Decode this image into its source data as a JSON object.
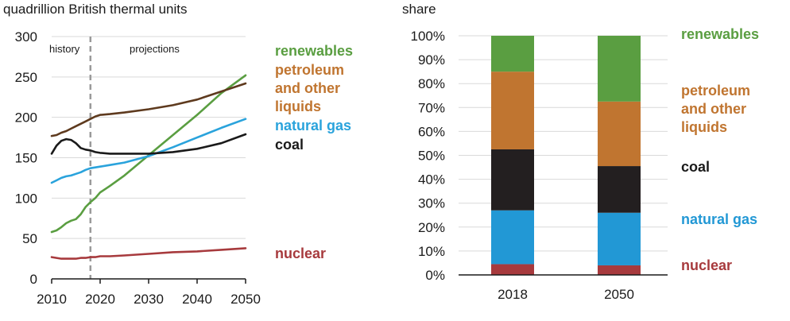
{
  "chart_data": [
    {
      "type": "line",
      "title": "",
      "ylabel": "quadrillion British thermal units",
      "xlabel": "",
      "xlim": [
        2010,
        2050
      ],
      "ylim": [
        0,
        300
      ],
      "xticks": [
        2010,
        2020,
        2030,
        2040,
        2050
      ],
      "yticks": [
        0,
        50,
        100,
        150,
        200,
        250,
        300
      ],
      "annotations": {
        "history": "history",
        "projections": "projections",
        "divider_year": 2018
      },
      "series": [
        {
          "name": "renewables",
          "color": "#5a9e41",
          "x": [
            2010,
            2011,
            2012,
            2013,
            2014,
            2015,
            2016,
            2017,
            2018,
            2019,
            2020,
            2022,
            2025,
            2030,
            2035,
            2040,
            2045,
            2050
          ],
          "y": [
            58,
            60,
            64,
            69,
            72,
            74,
            80,
            89,
            95,
            100,
            107,
            115,
            128,
            153,
            178,
            203,
            230,
            252
          ]
        },
        {
          "name": "petroleum and other liquids",
          "color": "#5e3a1e",
          "x": [
            2010,
            2011,
            2012,
            2013,
            2014,
            2015,
            2016,
            2017,
            2018,
            2019,
            2020,
            2022,
            2025,
            2030,
            2035,
            2040,
            2045,
            2050
          ],
          "y": [
            177,
            178,
            181,
            183,
            186,
            189,
            192,
            195,
            198,
            201,
            203,
            204,
            206,
            210,
            215,
            222,
            232,
            242
          ]
        },
        {
          "name": "natural gas",
          "color": "#2aa3dc",
          "x": [
            2010,
            2011,
            2012,
            2013,
            2014,
            2015,
            2016,
            2017,
            2018,
            2019,
            2020,
            2022,
            2025,
            2030,
            2035,
            2040,
            2045,
            2050
          ],
          "y": [
            119,
            122,
            125,
            127,
            128,
            130,
            132,
            135,
            137,
            138,
            139,
            141,
            144,
            152,
            163,
            175,
            187,
            198
          ]
        },
        {
          "name": "coal",
          "color": "#1a1a1a",
          "x": [
            2010,
            2011,
            2012,
            2013,
            2014,
            2015,
            2016,
            2017,
            2018,
            2019,
            2020,
            2022,
            2025,
            2030,
            2035,
            2040,
            2045,
            2050
          ],
          "y": [
            155,
            165,
            171,
            173,
            172,
            168,
            162,
            160,
            159,
            157,
            156,
            155,
            155,
            155,
            157,
            161,
            168,
            179
          ]
        },
        {
          "name": "nuclear",
          "color": "#a73a3d",
          "x": [
            2010,
            2011,
            2012,
            2013,
            2014,
            2015,
            2016,
            2017,
            2018,
            2019,
            2020,
            2022,
            2025,
            2030,
            2035,
            2040,
            2045,
            2050
          ],
          "y": [
            27,
            26,
            25,
            25,
            25,
            25,
            26,
            26,
            27,
            27,
            28,
            28,
            29,
            31,
            33,
            34,
            36,
            38
          ]
        }
      ],
      "legend": [
        {
          "text": "renewables",
          "color": "#5a9e41"
        },
        {
          "text": "petroleum",
          "color": "#c07530"
        },
        {
          "text": "and other",
          "color": "#c07530"
        },
        {
          "text": "liquids",
          "color": "#c07530"
        },
        {
          "text": "natural gas",
          "color": "#2aa3dc"
        },
        {
          "text": "coal",
          "color": "#1a1a1a"
        },
        {
          "text": "nuclear",
          "color": "#a73a3d"
        }
      ]
    },
    {
      "type": "bar",
      "stacked": true,
      "title": "",
      "ylabel": "share",
      "xlabel": "",
      "categories": [
        "2018",
        "2050"
      ],
      "ylim": [
        0,
        100
      ],
      "yticks": [
        "0%",
        "10%",
        "20%",
        "30%",
        "40%",
        "50%",
        "60%",
        "70%",
        "80%",
        "90%",
        "100%"
      ],
      "series": [
        {
          "name": "nuclear",
          "color": "#a73a3d",
          "values": [
            4.5,
            4.0
          ]
        },
        {
          "name": "natural gas",
          "color": "#2298d5",
          "values": [
            22.5,
            22.0
          ]
        },
        {
          "name": "coal",
          "color": "#231f20",
          "values": [
            25.5,
            19.5
          ]
        },
        {
          "name": "petroleum and other liquids",
          "color": "#c07530",
          "values": [
            32.5,
            27.0
          ]
        },
        {
          "name": "renewables",
          "color": "#5a9e41",
          "values": [
            15.0,
            27.5
          ]
        }
      ],
      "legend": [
        {
          "text": "renewables",
          "color": "#5a9e41"
        },
        {
          "text": "petroleum",
          "color": "#c07530"
        },
        {
          "text": "and other",
          "color": "#c07530"
        },
        {
          "text": "liquids",
          "color": "#c07530"
        },
        {
          "text": "coal",
          "color": "#1a1a1a"
        },
        {
          "text": "natural gas",
          "color": "#2298d5"
        },
        {
          "text": "nuclear",
          "color": "#a73a3d"
        }
      ]
    }
  ]
}
